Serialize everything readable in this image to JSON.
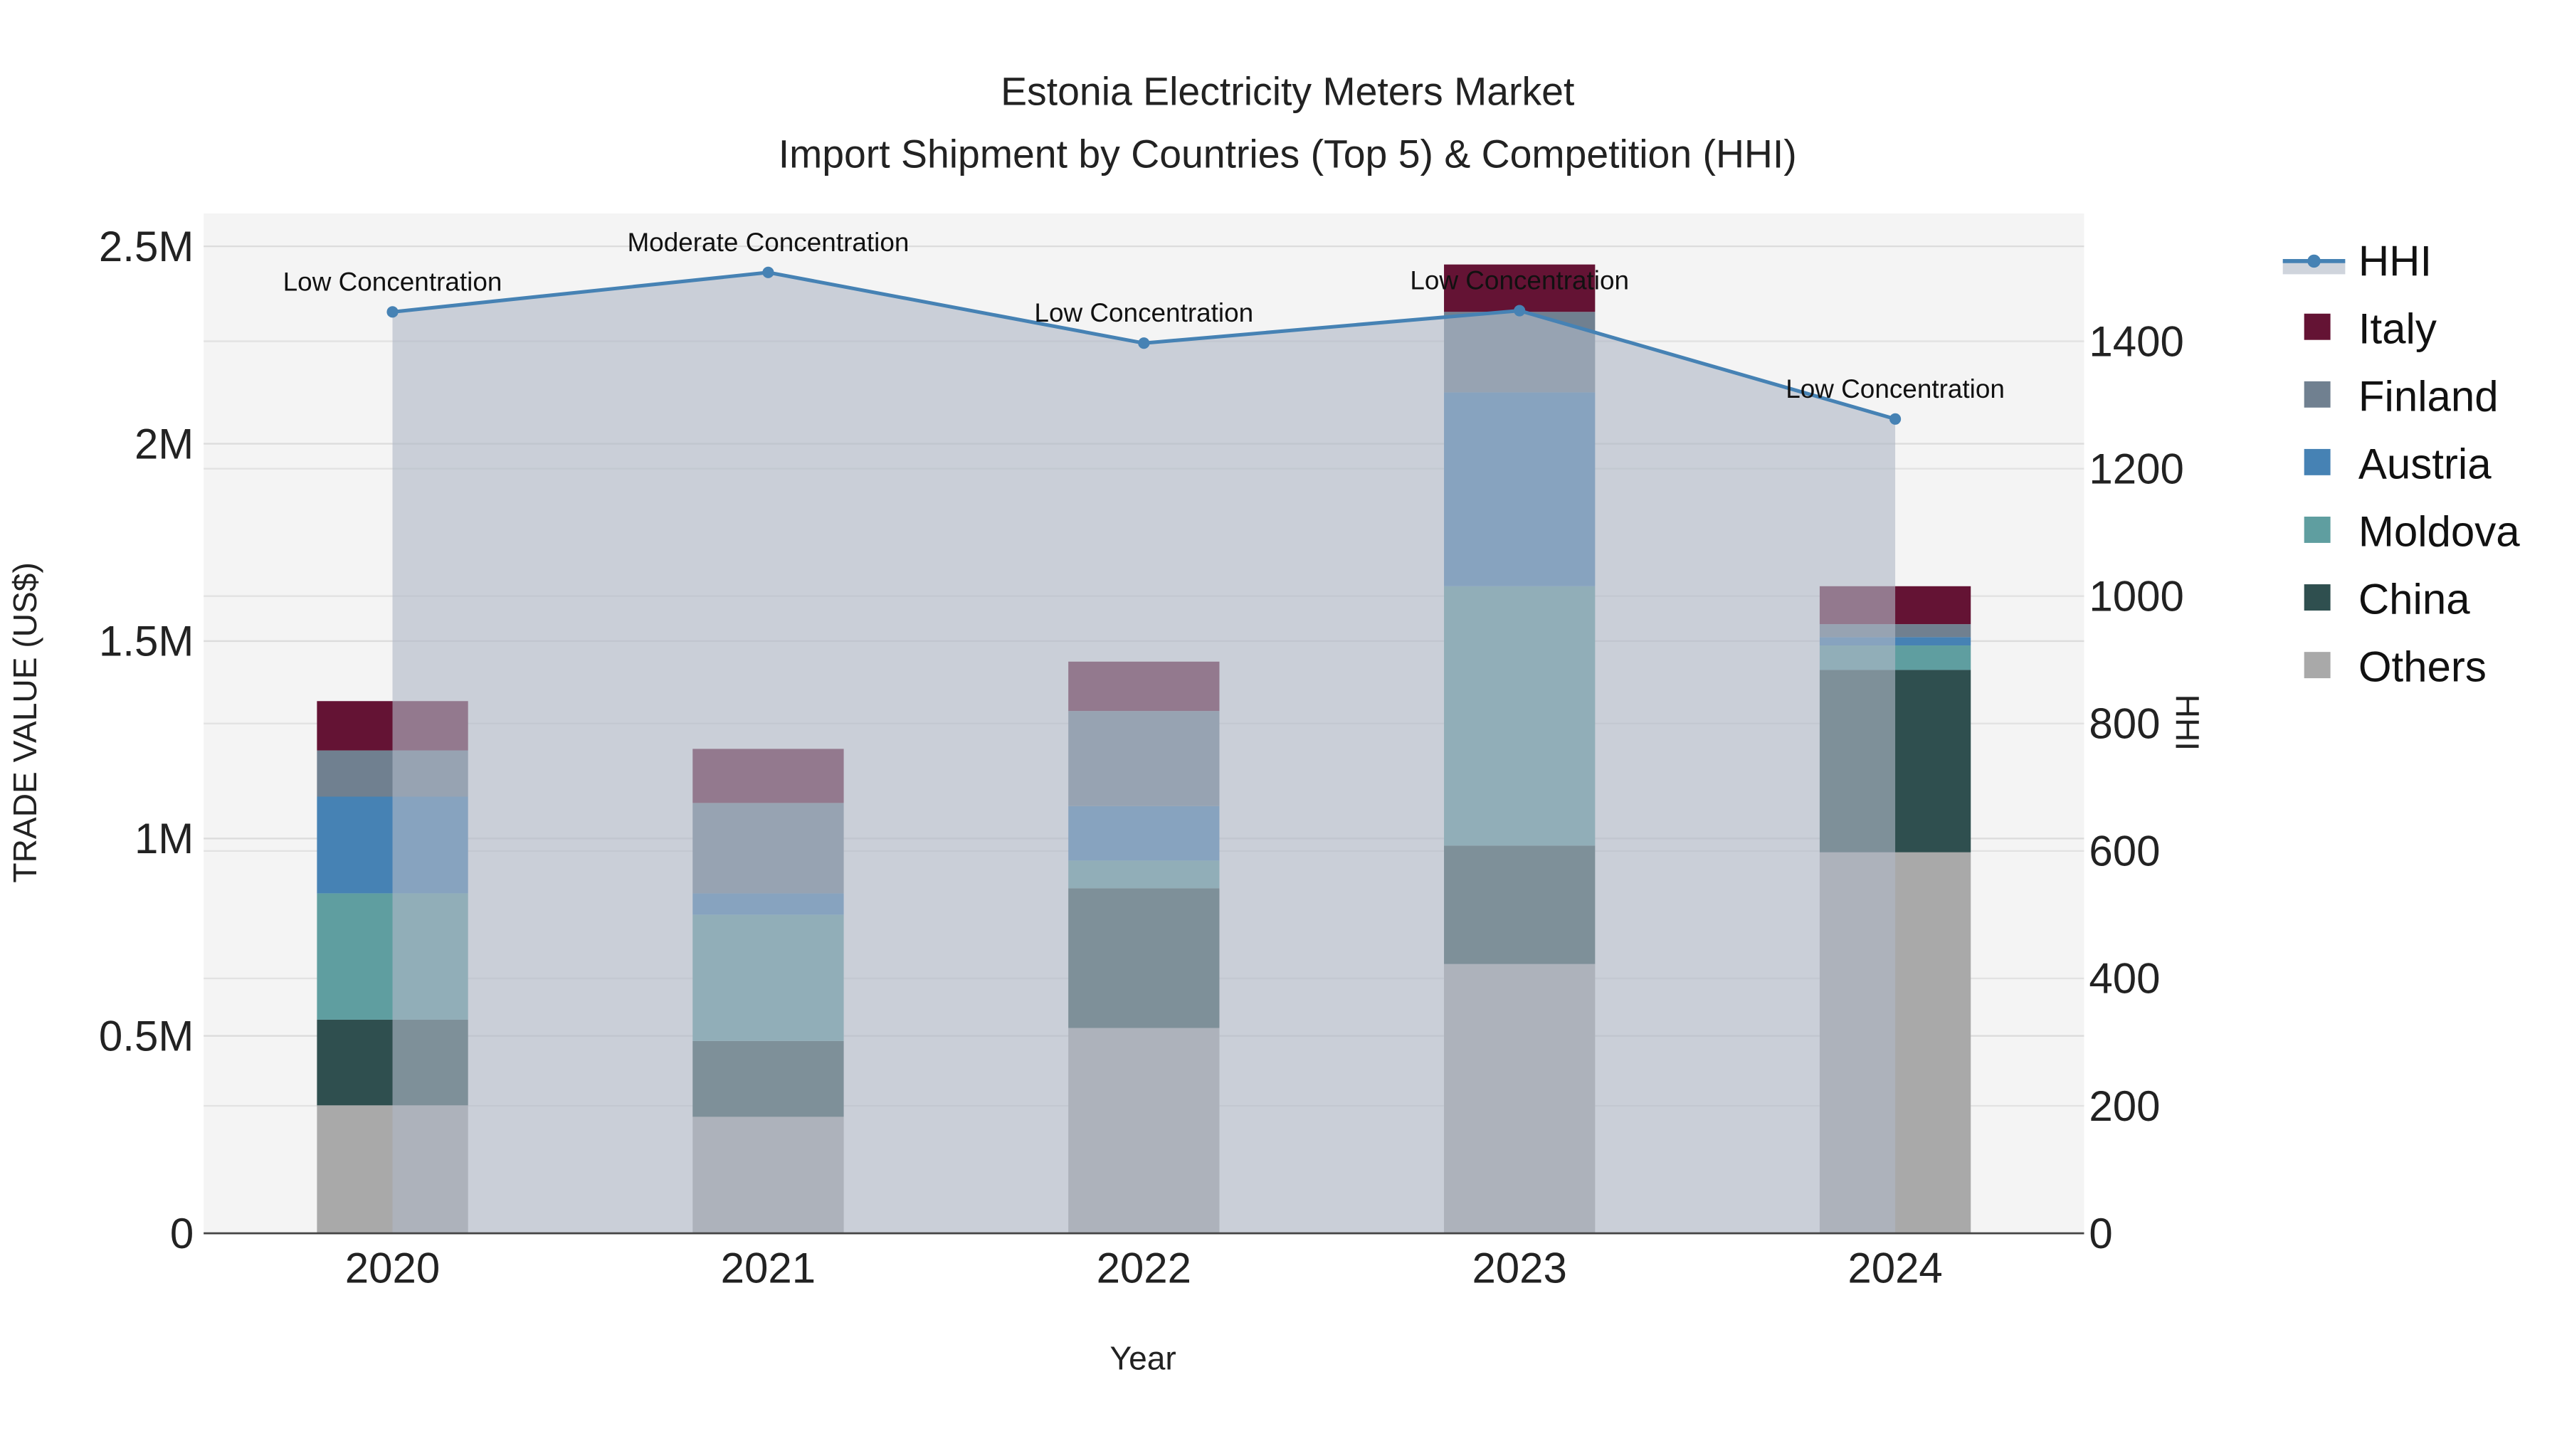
{
  "chart_data": {
    "type": "bar",
    "title": "Estonia Electricity Meters Market",
    "subtitle": "Import Shipment by Countries (Top 5) & Competition (HHI)",
    "xlabel": "Year",
    "ylabel": "TRADE VALUE (US$)",
    "y2label": "HHI",
    "categories": [
      "2020",
      "2021",
      "2022",
      "2023",
      "2024"
    ],
    "ylim": [
      0,
      2600000
    ],
    "y_ticks": [
      {
        "v": 0,
        "label": "0"
      },
      {
        "v": 500000,
        "label": "0.5M"
      },
      {
        "v": 1000000,
        "label": "1M"
      },
      {
        "v": 1500000,
        "label": "1.5M"
      },
      {
        "v": 2000000,
        "label": "2M"
      },
      {
        "v": 2500000,
        "label": "2.5M"
      }
    ],
    "y2lim": [
      0,
      1600
    ],
    "y2_ticks": [
      0,
      200,
      400,
      600,
      800,
      1000,
      1200,
      1400
    ],
    "stacked": true,
    "series": [
      {
        "name": "Others",
        "color": "#A9A9A9",
        "values": [
          324000,
          295000,
          520000,
          682000,
          965000
        ]
      },
      {
        "name": "China",
        "color": "#2F4F4F",
        "values": [
          217000,
          192000,
          354000,
          300000,
          462000
        ]
      },
      {
        "name": "Moldova",
        "color": "#5F9EA0",
        "values": [
          320000,
          320000,
          70000,
          657000,
          62000
        ]
      },
      {
        "name": "Austria",
        "color": "#4682B4",
        "values": [
          245000,
          54000,
          138000,
          491000,
          21000
        ]
      },
      {
        "name": "Finland",
        "color": "#708090",
        "values": [
          117000,
          229000,
          241000,
          204000,
          33000
        ]
      },
      {
        "name": "Italy",
        "color": "#641334",
        "values": [
          125000,
          137000,
          125000,
          120000,
          96000
        ]
      }
    ],
    "hhi": {
      "name": "HHI",
      "color": "#4682B4",
      "values": [
        1446,
        1508,
        1397,
        1448,
        1278
      ],
      "annotations": [
        "Low Concentration",
        "Moderate Concentration",
        "Low Concentration",
        "Low Concentration",
        "Low Concentration"
      ]
    },
    "legend": [
      "HHI",
      "Italy",
      "Finland",
      "Austria",
      "Moldova",
      "China",
      "Others"
    ],
    "legend_position": "right",
    "grid": true
  }
}
